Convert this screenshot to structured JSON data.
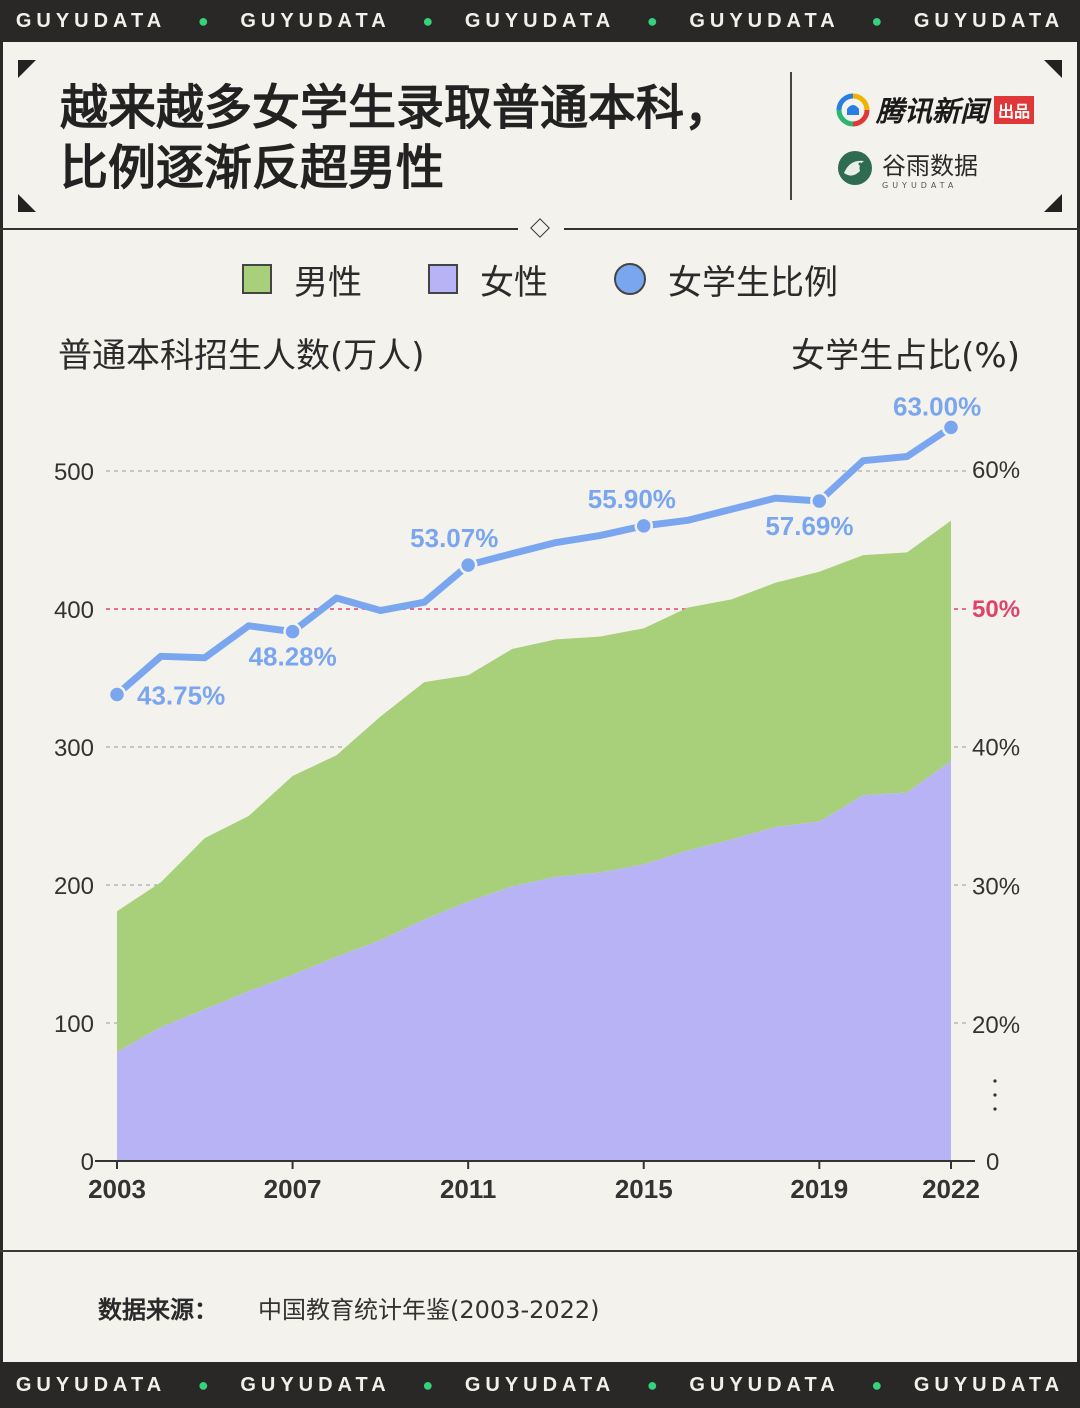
{
  "band": {
    "text": "GUYUDATA",
    "dot": "●"
  },
  "header": {
    "title_line1": "越来越多女学生录取普通本科，",
    "title_line2": "比例逐渐反超男性",
    "brand1_name": "腾讯新闻",
    "brand1_badge": "出品",
    "brand2_name": "谷雨数据",
    "brand2_sub": "GUYUDATA"
  },
  "legend": {
    "male": "男性",
    "female": "女性",
    "ratio": "女学生比例"
  },
  "axis_titles": {
    "left": "普通本科招生人数(万人)",
    "right": "女学生占比(%)"
  },
  "source": {
    "label": "数据来源：",
    "value": "中国教育统计年鉴(2003-2022)"
  },
  "colors": {
    "male": "#a8cf7a",
    "female": "#b8b3f5",
    "ratio": "#7aa6f0",
    "threshold": "#e0436a"
  },
  "chart_data": {
    "type": "area",
    "x": [
      2003,
      2004,
      2005,
      2006,
      2007,
      2008,
      2009,
      2010,
      2011,
      2012,
      2013,
      2014,
      2015,
      2016,
      2017,
      2018,
      2019,
      2020,
      2021,
      2022
    ],
    "x_ticks": [
      "2003",
      "2007",
      "2011",
      "2015",
      "2019",
      "2022"
    ],
    "left_axis": {
      "ticks": [
        "0",
        "100",
        "200",
        "300",
        "400",
        "500"
      ],
      "ylim": [
        0,
        500
      ]
    },
    "right_axis": {
      "ticks": [
        "0",
        "20%",
        "30%",
        "40%",
        "50%",
        "60%"
      ],
      "values": [
        0,
        20,
        30,
        40,
        50,
        60
      ],
      "broken": true
    },
    "series": [
      {
        "name": "女性",
        "type": "area",
        "values": [
          79,
          97,
          110,
          123,
          135,
          148,
          160,
          175,
          188,
          199,
          206,
          209,
          215,
          225,
          233,
          242,
          246,
          265,
          267,
          290
        ]
      },
      {
        "name": "男性",
        "type": "area",
        "values": [
          102,
          105,
          124,
          127,
          144,
          146,
          162,
          172,
          164,
          172,
          172,
          171,
          171,
          176,
          174,
          177,
          181,
          174,
          174,
          174
        ]
      },
      {
        "name": "女学生比例",
        "type": "line",
        "axis": "right",
        "values": [
          43.75,
          46.5,
          46.4,
          48.7,
          48.28,
          50.7,
          49.8,
          50.4,
          53.07,
          53.9,
          54.7,
          55.2,
          55.9,
          56.3,
          57.1,
          57.9,
          57.69,
          60.6,
          60.9,
          63.0
        ]
      }
    ],
    "labels": [
      {
        "x": 2003,
        "text": "43.75%"
      },
      {
        "x": 2007,
        "text": "48.28%"
      },
      {
        "x": 2011,
        "text": "53.07%"
      },
      {
        "x": 2015,
        "text": "55.90%"
      },
      {
        "x": 2019,
        "text": "57.69%"
      },
      {
        "x": 2022,
        "text": "63.00%"
      }
    ]
  }
}
